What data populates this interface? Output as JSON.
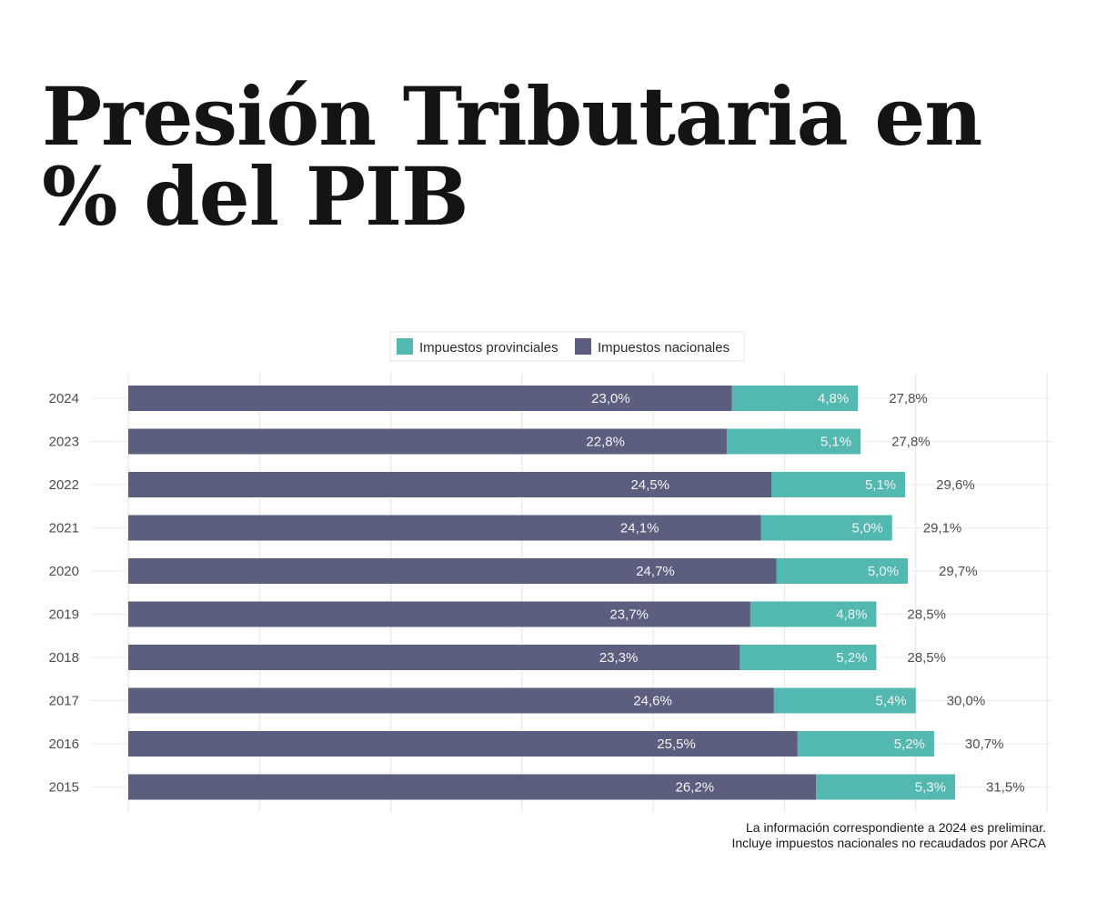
{
  "title": "Presión Tributaria en % del PIB",
  "colors": {
    "provinciales": "#52b8b0",
    "nacionales": "#5c5e80",
    "grid": "#e3e3e3",
    "title": "#141414"
  },
  "chart_data": {
    "type": "bar",
    "orientation": "horizontal",
    "stacked": true,
    "title": "Presión Tributaria en % del PIB",
    "xlabel": "",
    "ylabel": "",
    "xlim": [
      0,
      35
    ],
    "x_grid_step": 5,
    "grid": true,
    "x_tick_labels_visible": false,
    "legend_position": "top-center",
    "categories": [
      "2024",
      "2023",
      "2022",
      "2021",
      "2020",
      "2019",
      "2018",
      "2017",
      "2016",
      "2015"
    ],
    "series": [
      {
        "name": "Impuestos nacionales",
        "key": "nacionales",
        "values": [
          23.0,
          22.8,
          24.5,
          24.1,
          24.7,
          23.7,
          23.3,
          24.6,
          25.5,
          26.2
        ],
        "labels": [
          "23,0%",
          "22,8%",
          "24,5%",
          "24,1%",
          "24,7%",
          "23,7%",
          "23,3%",
          "24,6%",
          "25,5%",
          "26,2%"
        ]
      },
      {
        "name": "Impuestos provinciales",
        "key": "provinciales",
        "values": [
          4.8,
          5.1,
          5.1,
          5.0,
          5.0,
          4.8,
          5.2,
          5.4,
          5.2,
          5.3
        ],
        "labels": [
          "4,8%",
          "5,1%",
          "5,1%",
          "5,0%",
          "5,0%",
          "4,8%",
          "5,2%",
          "5,4%",
          "5,2%",
          "5,3%"
        ]
      }
    ],
    "totals": [
      27.8,
      27.8,
      29.6,
      29.1,
      29.7,
      28.5,
      28.5,
      30.0,
      30.7,
      31.5
    ],
    "total_labels": [
      "27,8%",
      "27,8%",
      "29,6%",
      "29,1%",
      "29,7%",
      "28,5%",
      "28,5%",
      "30,0%",
      "30,7%",
      "31,5%"
    ],
    "legend": [
      "Impuestos provinciales",
      "Impuestos nacionales"
    ],
    "annotations": [
      "La información correspondiente a 2024 es preliminar.",
      "Incluye impuestos nacionales no recaudados por ARCA"
    ]
  }
}
